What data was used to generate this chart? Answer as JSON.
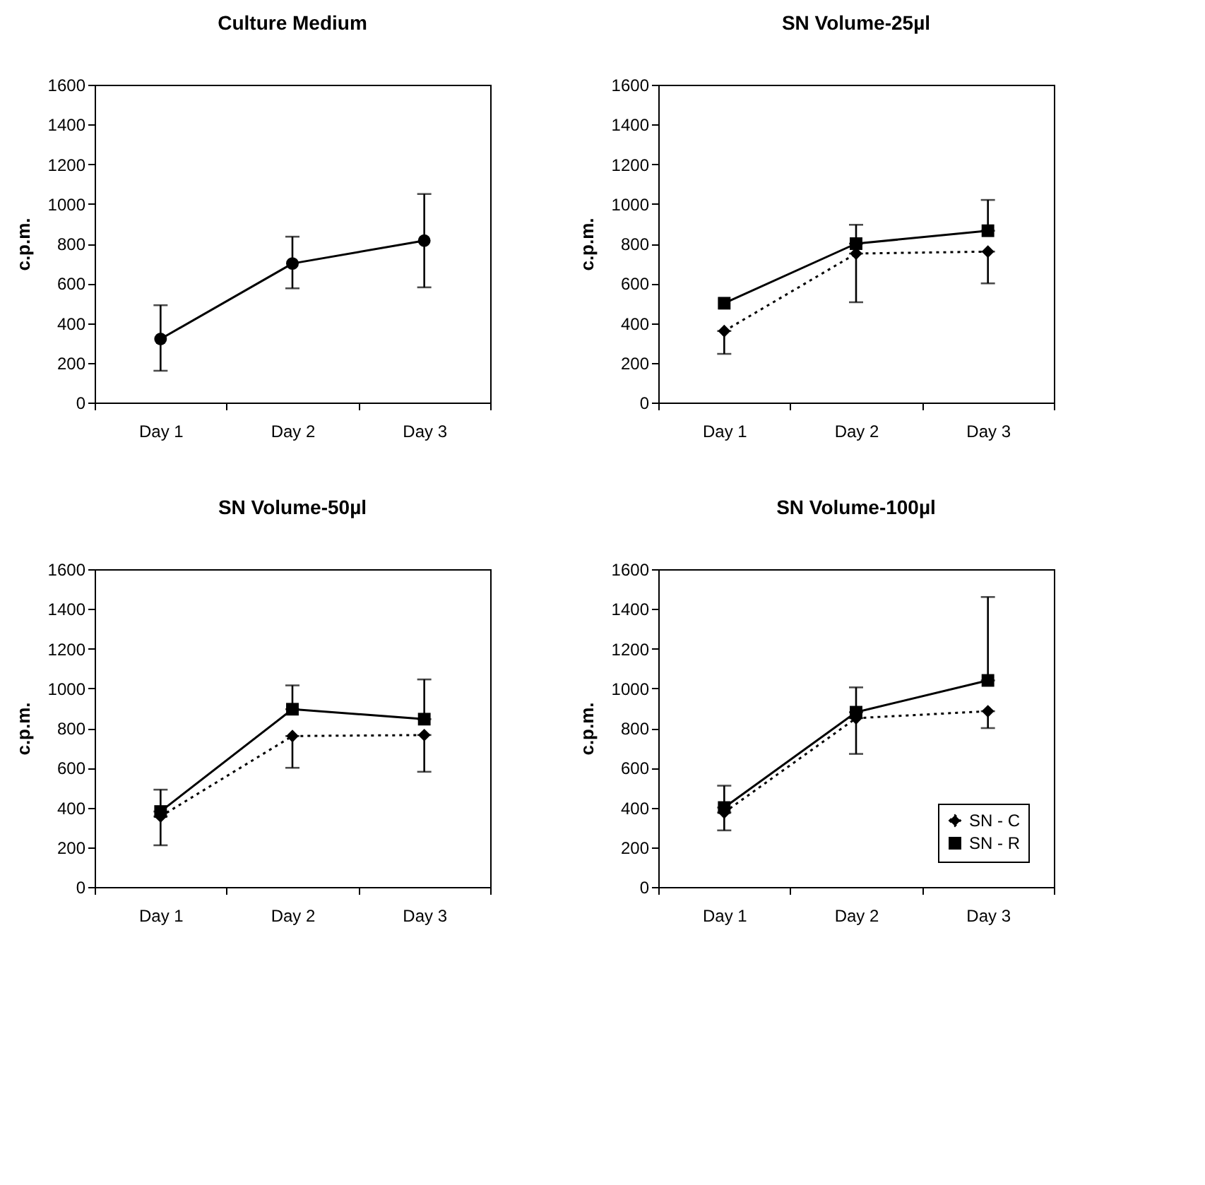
{
  "chart_data": [
    {
      "type": "line",
      "title": "Culture Medium",
      "ylabel": "c.p.m.",
      "categories": [
        "Day 1",
        "Day 2",
        "Day 3"
      ],
      "ylim": [
        0,
        1600
      ],
      "yticks": [
        0,
        200,
        400,
        600,
        800,
        1000,
        1200,
        1400,
        1600
      ],
      "grid": false,
      "series": [
        {
          "color": "#000000",
          "marker": "circle",
          "line_style": "solid",
          "values": [
            320,
            700,
            815
          ],
          "errors": [
            [
              160,
              490
            ],
            [
              575,
              835
            ],
            [
              580,
              1050
            ]
          ]
        }
      ]
    },
    {
      "type": "line",
      "title": "SN Volume-25µl",
      "ylabel": "c.p.m.",
      "categories": [
        "Day 1",
        "Day 2",
        "Day 3"
      ],
      "ylim": [
        0,
        1600
      ],
      "yticks": [
        0,
        200,
        400,
        600,
        800,
        1000,
        1200,
        1400,
        1600
      ],
      "grid": false,
      "series": [
        {
          "color": "#000000",
          "marker": "diamond",
          "line_style": "dotted",
          "values": [
            360,
            750,
            760
          ],
          "errors": [
            [
              245,
              360
            ],
            [
              505,
              750
            ],
            [
              600,
              760
            ]
          ]
        },
        {
          "color": "#000000",
          "marker": "square",
          "line_style": "solid",
          "values": [
            500,
            800,
            865
          ],
          "errors": [
            null,
            [
              800,
              895
            ],
            [
              865,
              1020
            ]
          ]
        }
      ]
    },
    {
      "type": "line",
      "title": "SN Volume-50µl",
      "ylabel": "c.p.m.",
      "categories": [
        "Day 1",
        "Day 2",
        "Day 3"
      ],
      "ylim": [
        0,
        1600
      ],
      "yticks": [
        0,
        200,
        400,
        600,
        800,
        1000,
        1200,
        1400,
        1600
      ],
      "grid": false,
      "series": [
        {
          "color": "#000000",
          "marker": "diamond",
          "line_style": "dotted",
          "values": [
            355,
            760,
            765
          ],
          "errors": [
            [
              210,
              355
            ],
            [
              600,
              760
            ],
            [
              580,
              765
            ]
          ]
        },
        {
          "color": "#000000",
          "marker": "square",
          "line_style": "solid",
          "values": [
            380,
            895,
            845
          ],
          "errors": [
            [
              380,
              490
            ],
            [
              895,
              1015
            ],
            [
              845,
              1045
            ]
          ]
        }
      ]
    },
    {
      "type": "line",
      "title": "SN Volume-100µl",
      "ylabel": "c.p.m.",
      "categories": [
        "Day 1",
        "Day 2",
        "Day 3"
      ],
      "ylim": [
        0,
        1600
      ],
      "yticks": [
        0,
        200,
        400,
        600,
        800,
        1000,
        1200,
        1400,
        1600
      ],
      "grid": false,
      "legend": "bottom right",
      "series": [
        {
          "name": "SN - C",
          "color": "#000000",
          "marker": "diamond",
          "line_style": "dotted",
          "values": [
            375,
            850,
            885
          ],
          "errors": [
            [
              285,
              375
            ],
            [
              670,
              850
            ],
            [
              800,
              885
            ]
          ]
        },
        {
          "name": "SN - R",
          "color": "#000000",
          "marker": "square",
          "line_style": "solid",
          "values": [
            400,
            880,
            1040
          ],
          "errors": [
            [
              400,
              510
            ],
            [
              880,
              1005
            ],
            [
              1040,
              1460
            ]
          ]
        }
      ]
    }
  ]
}
